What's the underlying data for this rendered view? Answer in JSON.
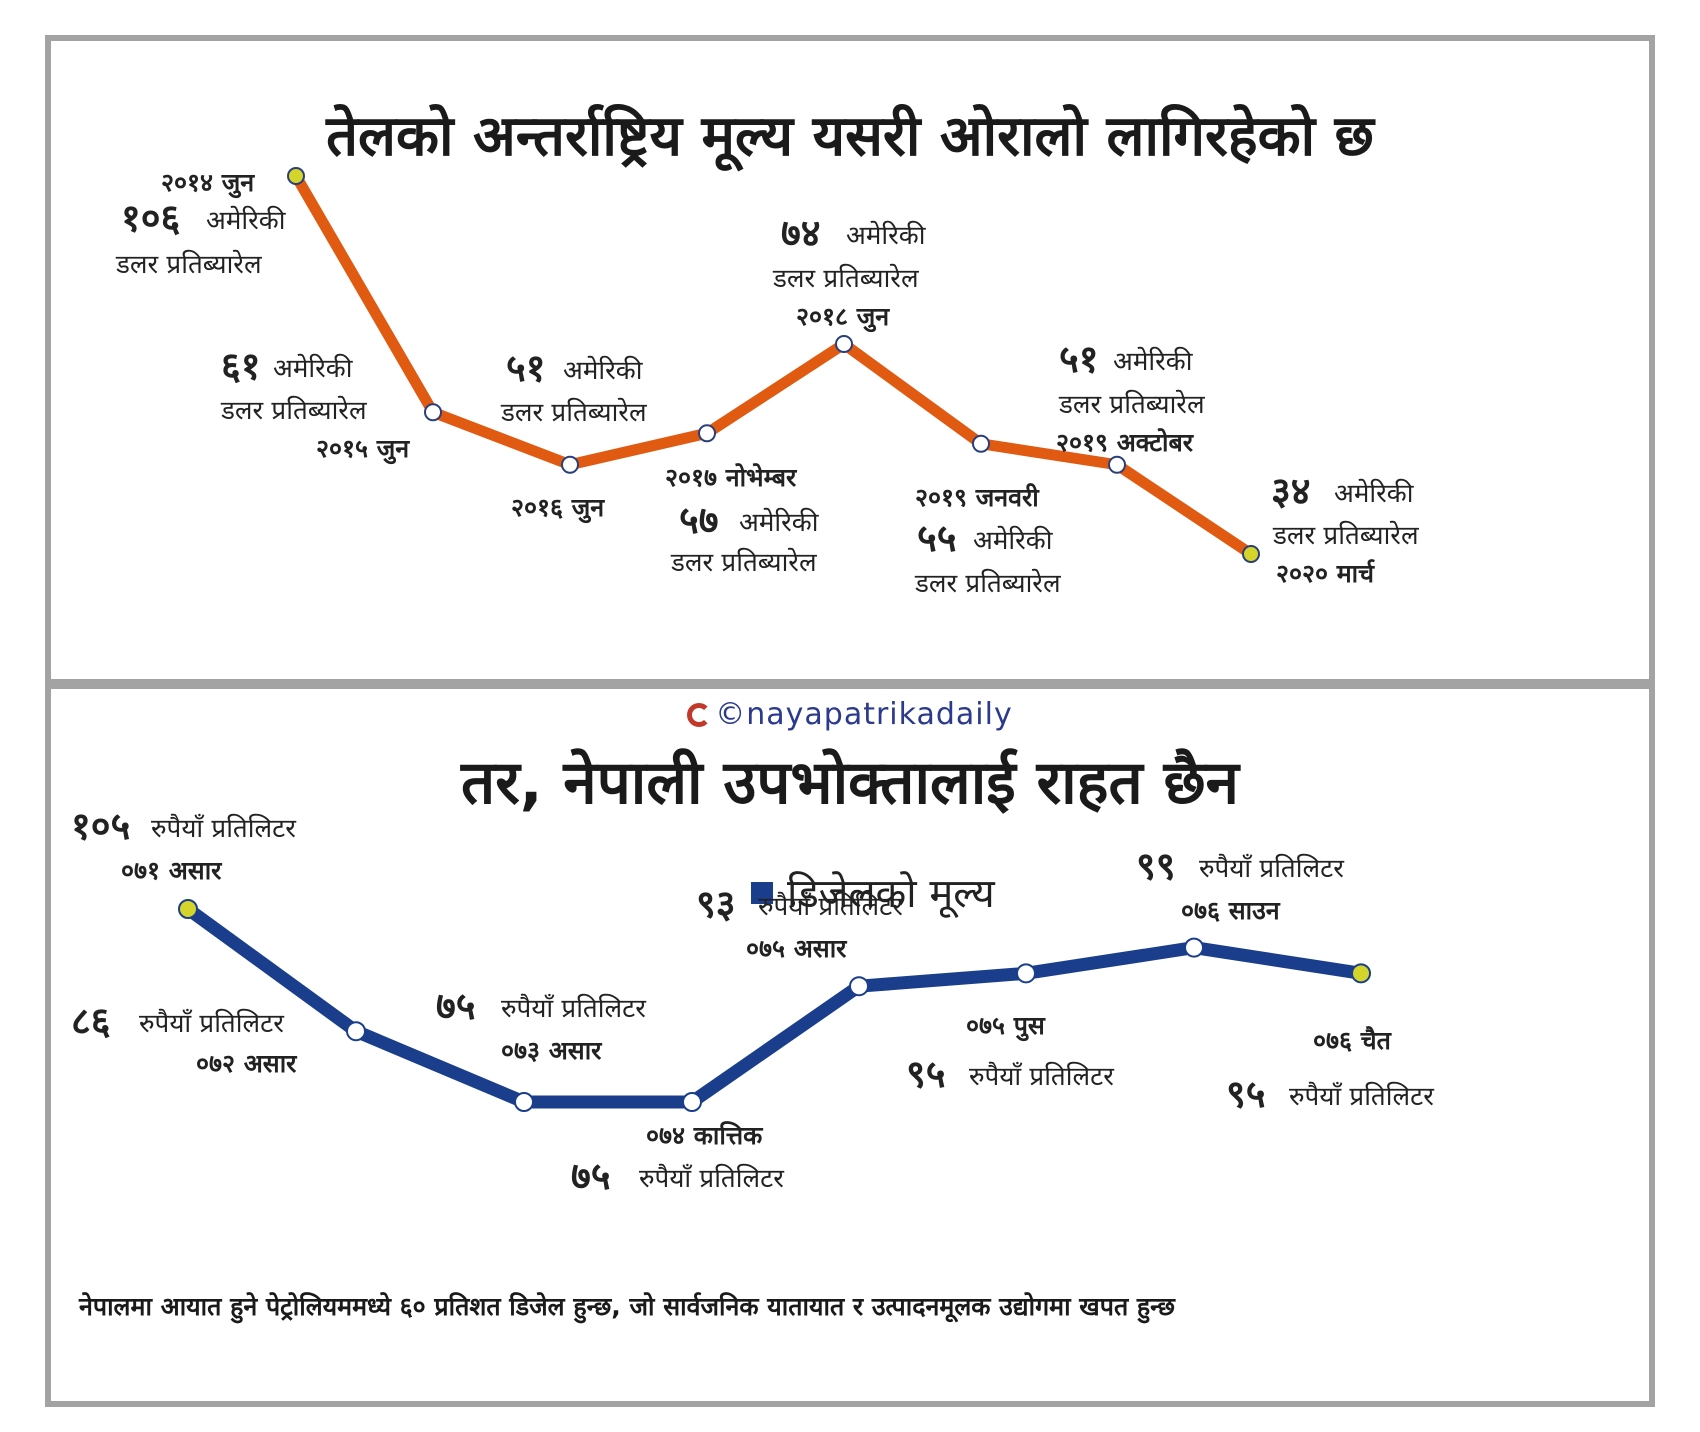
{
  "top": {
    "title": "तेलको अन्तर्राष्ट्रिय मूल्य यसरी ओरालो लागिरहेको छ",
    "chart_data": {
      "type": "line",
      "x": [
        "२०१४ जुन",
        "२०१५ जुन",
        "२०१६ जुन",
        "२०१७ नोभेम्बर",
        "२०१८ जुन",
        "२०१९ जनवरी",
        "२०१९ अक्टोबर",
        "२०२० मार्च"
      ],
      "values": [
        106,
        61,
        51,
        57,
        74,
        55,
        51,
        34
      ],
      "labels": [
        {
          "value": "१०६",
          "unit1": "अमेरिकी",
          "unit2": "डलर प्रतिब्यारेल",
          "date": "२०१४ जुन"
        },
        {
          "value": "६१",
          "unit1": "अमेरिकी",
          "unit2": "डलर प्रतिब्यारेल",
          "date": "२०१५ जुन"
        },
        {
          "value": "५१",
          "unit1": "अमेरिकी",
          "unit2": "डलर प्रतिब्यारेल",
          "date": "२०१६ जुन"
        },
        {
          "value": "५७",
          "unit1": "अमेरिकी",
          "unit2": "डलर प्रतिब्यारेल",
          "date": "२०१७ नोभेम्बर"
        },
        {
          "value": "७४",
          "unit1": "अमेरिकी",
          "unit2": "डलर प्रतिब्यारेल",
          "date": "२०१८ जुन"
        },
        {
          "value": "५५",
          "unit1": "अमेरिकी",
          "unit2": "डलर प्रतिब्यारेल",
          "date": "२०१९ जनवरी"
        },
        {
          "value": "५१",
          "unit1": "अमेरिकी",
          "unit2": "डलर प्रतिब्यारेल",
          "date": "२०१९ अक्टोबर"
        },
        {
          "value": "३४",
          "unit1": "अमेरिकी",
          "unit2": "डलर प्रतिब्यारेल",
          "date": "२०२० मार्च"
        }
      ],
      "line_color": "#e05a12",
      "endpoint_color": "#d4d42a"
    }
  },
  "bottom": {
    "brand": "©nayapatrikadaily",
    "title": "तर, नेपाली उपभोक्तालाई राहत छैन",
    "legend": "डिजेलको मूल्य",
    "footnote": "नेपालमा आयात हुने पेट्रोलियममध्ये ६० प्रतिशत डिजेल हुन्छ, जो सार्वजनिक यातायात र उत्पादनमूलक उद्योगमा खपत हुन्छ",
    "chart_data": {
      "type": "line",
      "x": [
        "०७१ असार",
        "०७२ असार",
        "०७३ असार",
        "०७४ कात्तिक",
        "०७५ असार",
        "०७५ पुस",
        "०७६ साउन",
        "०७६ चैत"
      ],
      "values": [
        105,
        86,
        75,
        75,
        93,
        95,
        99,
        95
      ],
      "labels": [
        {
          "value": "१०५",
          "unit": "रुपैयाँ प्रतिलिटर",
          "date": "०७१ असार"
        },
        {
          "value": "८६",
          "unit": "रुपैयाँ प्रतिलिटर",
          "date": "०७२ असार"
        },
        {
          "value": "७५",
          "unit": "रुपैयाँ प्रतिलिटर",
          "date": "०७३ असार"
        },
        {
          "value": "७५",
          "unit": "रुपैयाँ प्रतिलिटर",
          "date": "०७४ कात्तिक"
        },
        {
          "value": "९३",
          "unit": "रुपैयाँ प्रतिलिटर",
          "date": "०७५ असार"
        },
        {
          "value": "९५",
          "unit": "रुपैयाँ प्रतिलिटर",
          "date": "०७५ पुस"
        },
        {
          "value": "९९",
          "unit": "रुपैयाँ प्रतिलिटर",
          "date": "०७६ साउन"
        },
        {
          "value": "९५",
          "unit": "रुपैयाँ प्रतिलिटर",
          "date": "०७६ चैत"
        }
      ],
      "line_color": "#1a3e8c",
      "endpoint_color": "#d4d42a"
    }
  }
}
